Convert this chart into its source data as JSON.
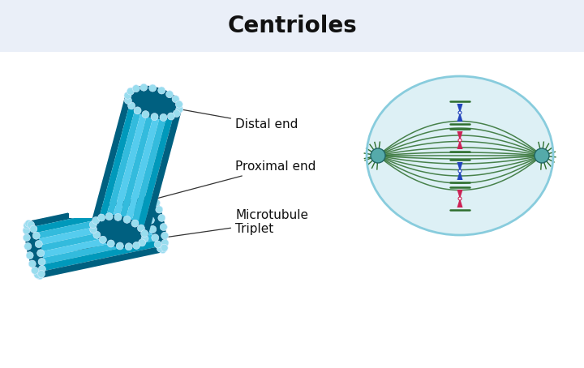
{
  "title": "Centrioles",
  "title_fontsize": 20,
  "title_fontweight": "bold",
  "title_bg": "#eaeff8",
  "bg_color": "#ffffff",
  "label_distal": "Distal end",
  "label_proximal": "Proximal end",
  "label_microtubule": "Microtubule\nTriplet",
  "label_fontsize": 11,
  "c_dark": "#006080",
  "c_mid": "#0099bb",
  "c_light": "#33bbdd",
  "c_lighter": "#55ccee",
  "c_bead": "#99ddee",
  "spindle_bg": "#ddf0f5",
  "spindle_border": "#88ccdd",
  "spindle_fiber": "#2d6e2d",
  "centrosome_color": "#55aaaa",
  "centrosome_edge": "#226666",
  "chrom_blue": "#2244bb",
  "chrom_pink": "#cc2255"
}
